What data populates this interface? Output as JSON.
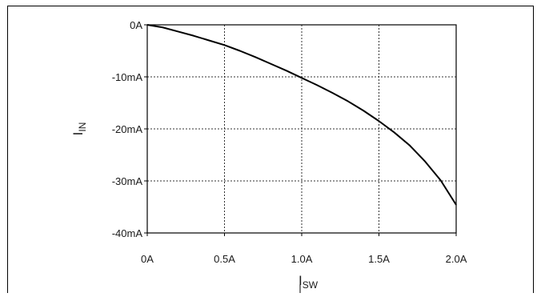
{
  "chart_data": {
    "type": "line",
    "title": "",
    "xlabel": {
      "main": "I",
      "sub": "SW"
    },
    "ylabel": {
      "main": "I",
      "sub": "IN"
    },
    "xlim": [
      0,
      2.0
    ],
    "ylim": [
      -40,
      0
    ],
    "x_unit": "A",
    "y_unit": "mA",
    "xticks": [
      0,
      0.5,
      1.0,
      1.5,
      2.0
    ],
    "xtick_labels": [
      "0A",
      "0.5A",
      "1.0A",
      "1.5A",
      "2.0A"
    ],
    "yticks": [
      0,
      -10,
      -20,
      -30,
      -40
    ],
    "ytick_labels": [
      "0A",
      "-10mA",
      "-20mA",
      "-30mA",
      "-40mA"
    ],
    "grid": true,
    "series": [
      {
        "color": "#000000",
        "x": [
          0,
          0.1,
          0.2,
          0.3,
          0.4,
          0.5,
          0.6,
          0.7,
          0.8,
          0.9,
          1.0,
          1.1,
          1.2,
          1.3,
          1.4,
          1.5,
          1.6,
          1.7,
          1.8,
          1.9,
          2.0
        ],
        "y": [
          0,
          -0.5,
          -1.3,
          -2.1,
          -3.0,
          -3.9,
          -5.0,
          -6.2,
          -7.5,
          -8.8,
          -10.2,
          -11.6,
          -13.1,
          -14.7,
          -16.5,
          -18.5,
          -20.7,
          -23.2,
          -26.3,
          -29.9,
          -34.6
        ]
      }
    ]
  }
}
